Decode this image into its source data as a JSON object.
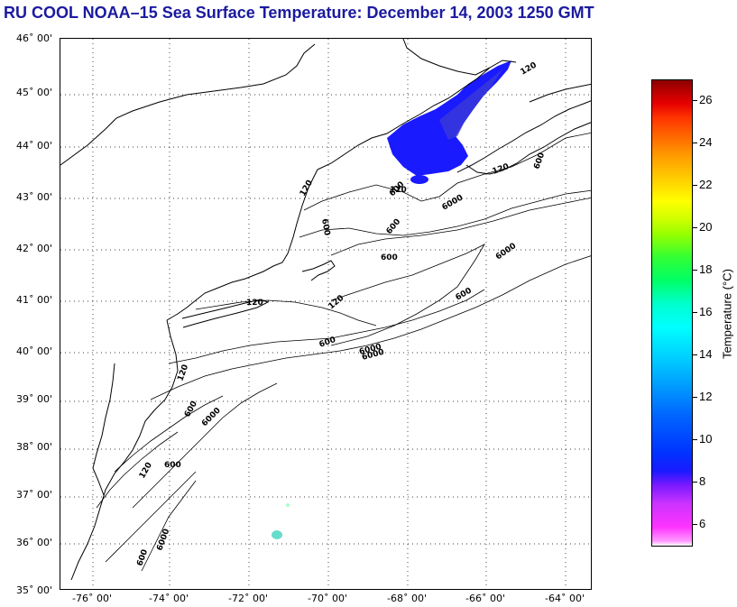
{
  "title": "RU COOL  NOAA–15  Sea Surface Temperature:  December 14, 2003 1250 GMT",
  "colors": {
    "title": "#1a1aa0",
    "sst_cold": "#1a1aff",
    "sst_mid": "#2a2ae6",
    "sst_patch": "#66ddcc",
    "contour": "#000000"
  },
  "map": {
    "lat_labels": [
      "46˚ 00'",
      "45˚ 00'",
      "44˚ 00'",
      "43˚ 00'",
      "42˚ 00'",
      "41˚ 00'",
      "40˚ 00'",
      "39˚ 00'",
      "38˚ 00'",
      "37˚ 00'",
      "36˚ 00'",
      "35˚ 00'"
    ],
    "lon_labels": [
      "-76˚ 00'",
      "-74˚ 00'",
      "-72˚ 00'",
      "-70˚ 00'",
      "-68˚ 00'",
      "-66˚ 00'",
      "-64˚ 00'"
    ],
    "contour_labels": [
      "120",
      "600",
      "6000",
      "120",
      "600",
      "120",
      "600",
      "6000",
      "600",
      "6000",
      "120",
      "600",
      "6000",
      "120",
      "600",
      "6000",
      "600",
      "120",
      "120",
      "600",
      "120",
      "600",
      "6000",
      "600"
    ]
  },
  "colorbar": {
    "label": "Temperature (°C)",
    "ticks": [
      "26",
      "24",
      "22",
      "20",
      "18",
      "16",
      "14",
      "12",
      "10",
      "8",
      "6"
    ],
    "range": [
      5,
      27
    ]
  }
}
